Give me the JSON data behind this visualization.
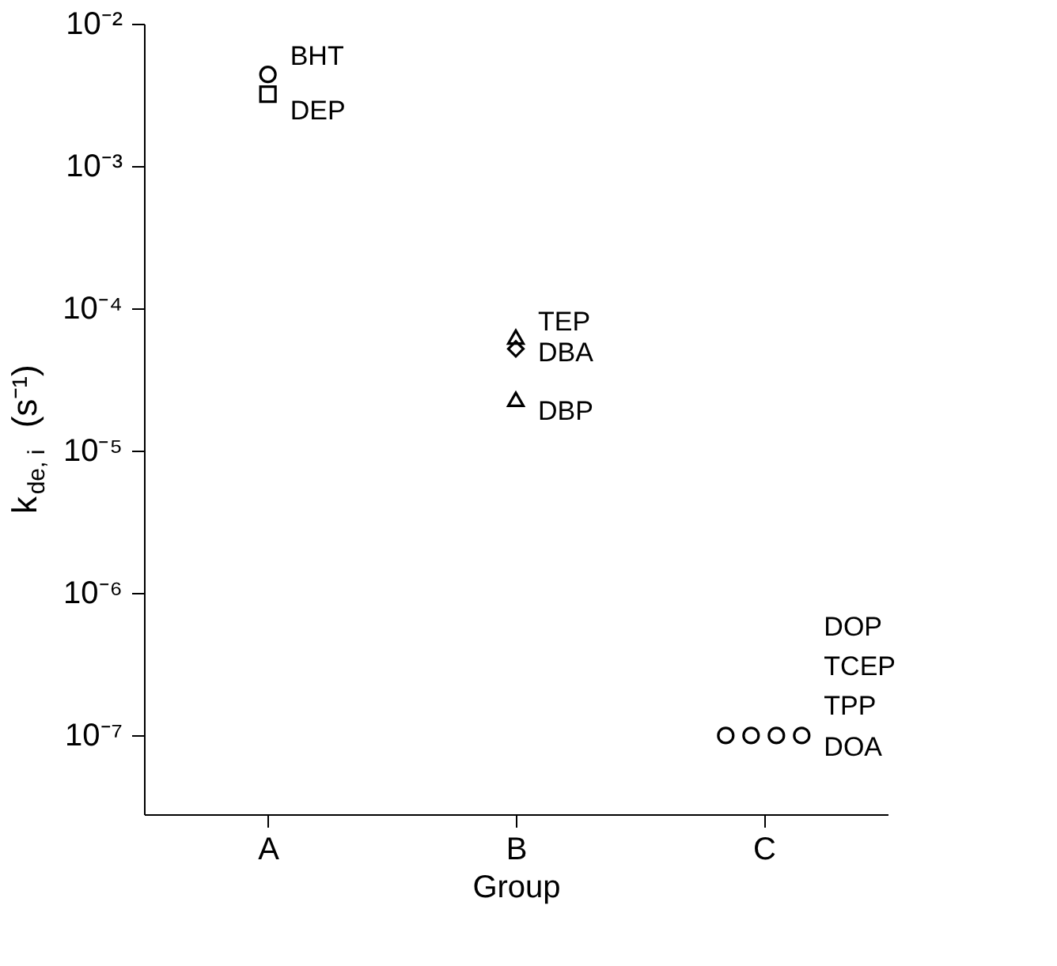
{
  "chart_data": {
    "type": "scatter",
    "xlabel": "Group",
    "ylabel": "k$_{de, i}$ (s⁻¹)",
    "categories": [
      "A",
      "B",
      "C"
    ],
    "series": [
      {
        "name": "BHT",
        "color": "#000000",
        "marker": "circle",
        "x": [
          "A"
        ],
        "values": [
          0.0044
        ]
      },
      {
        "name": "DEP",
        "color": "#000000",
        "marker": "square",
        "x": [
          "A"
        ],
        "values": [
          0.0032
        ]
      },
      {
        "name": "TEP",
        "color": "#000000",
        "marker": "triangle",
        "x": [
          "B"
        ],
        "values": [
          6.3e-05
        ]
      },
      {
        "name": "DBA",
        "color": "#000000",
        "marker": "diamond",
        "x": [
          "B"
        ],
        "values": [
          5.2e-05
        ]
      },
      {
        "name": "DBP",
        "color": "#000000",
        "marker": "triangle",
        "x": [
          "B"
        ],
        "values": [
          2.3e-05
        ]
      },
      {
        "name": "DOP",
        "color": "#000000",
        "x": [
          "C"
        ],
        "values": [
          1e-07
        ]
      },
      {
        "name": "TCEP",
        "color": "#000000",
        "x": [
          "C"
        ],
        "values": [
          1e-07
        ]
      },
      {
        "name": "TPP",
        "color": "#000000",
        "x": [
          "C"
        ],
        "values": [
          1e-07
        ]
      },
      {
        "name": "DOA",
        "color": "#000000",
        "x": [
          "C"
        ],
        "values": [
          1e-07
        ]
      }
    ],
    "log": true,
    "ylim": [
      2.8e-08,
      0.01
    ],
    "yticks": [
      {
        "value": 0.01,
        "label": "10⁻²"
      },
      {
        "value": 0.001,
        "label": "10⁻³"
      },
      {
        "value": 0.0001,
        "label": "10⁻⁴"
      },
      {
        "value": 1e-05,
        "label": "10⁻⁵"
      },
      {
        "value": 1e-06,
        "label": "10⁻⁶"
      },
      {
        "value": 1e-07,
        "label": "10⁻⁷"
      }
    ],
    "grid": false
  }
}
